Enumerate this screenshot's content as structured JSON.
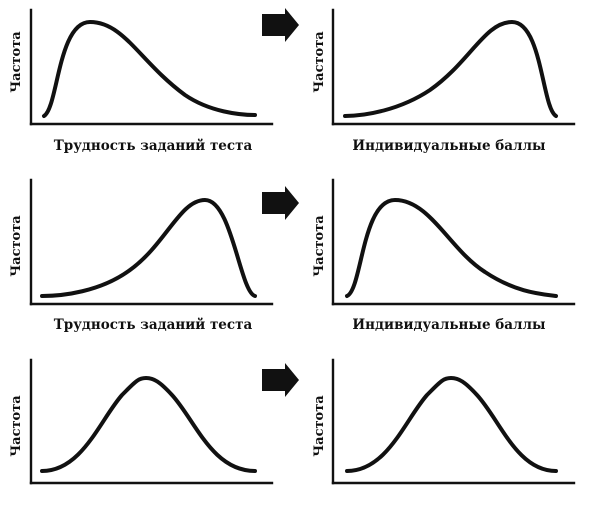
{
  "diagram": {
    "rows": [
      {
        "left": {
          "ylabel": "Частота",
          "xlabel": "Трудность заданий теста",
          "shape": "right-skewed"
        },
        "right": {
          "ylabel": "Частота",
          "xlabel": "Индивидуальные баллы",
          "shape": "left-skewed"
        }
      },
      {
        "left": {
          "ylabel": "Частота",
          "xlabel": "Трудность заданий теста",
          "shape": "left-skewed"
        },
        "right": {
          "ylabel": "Частота",
          "xlabel": "Индивидуальные баллы",
          "shape": "right-skewed"
        }
      },
      {
        "left": {
          "ylabel": "Частота",
          "xlabel": "",
          "shape": "symmetric"
        },
        "right": {
          "ylabel": "Частота",
          "xlabel": "",
          "shape": "symmetric"
        }
      }
    ],
    "arrow_icon": "right-arrow-icon"
  }
}
